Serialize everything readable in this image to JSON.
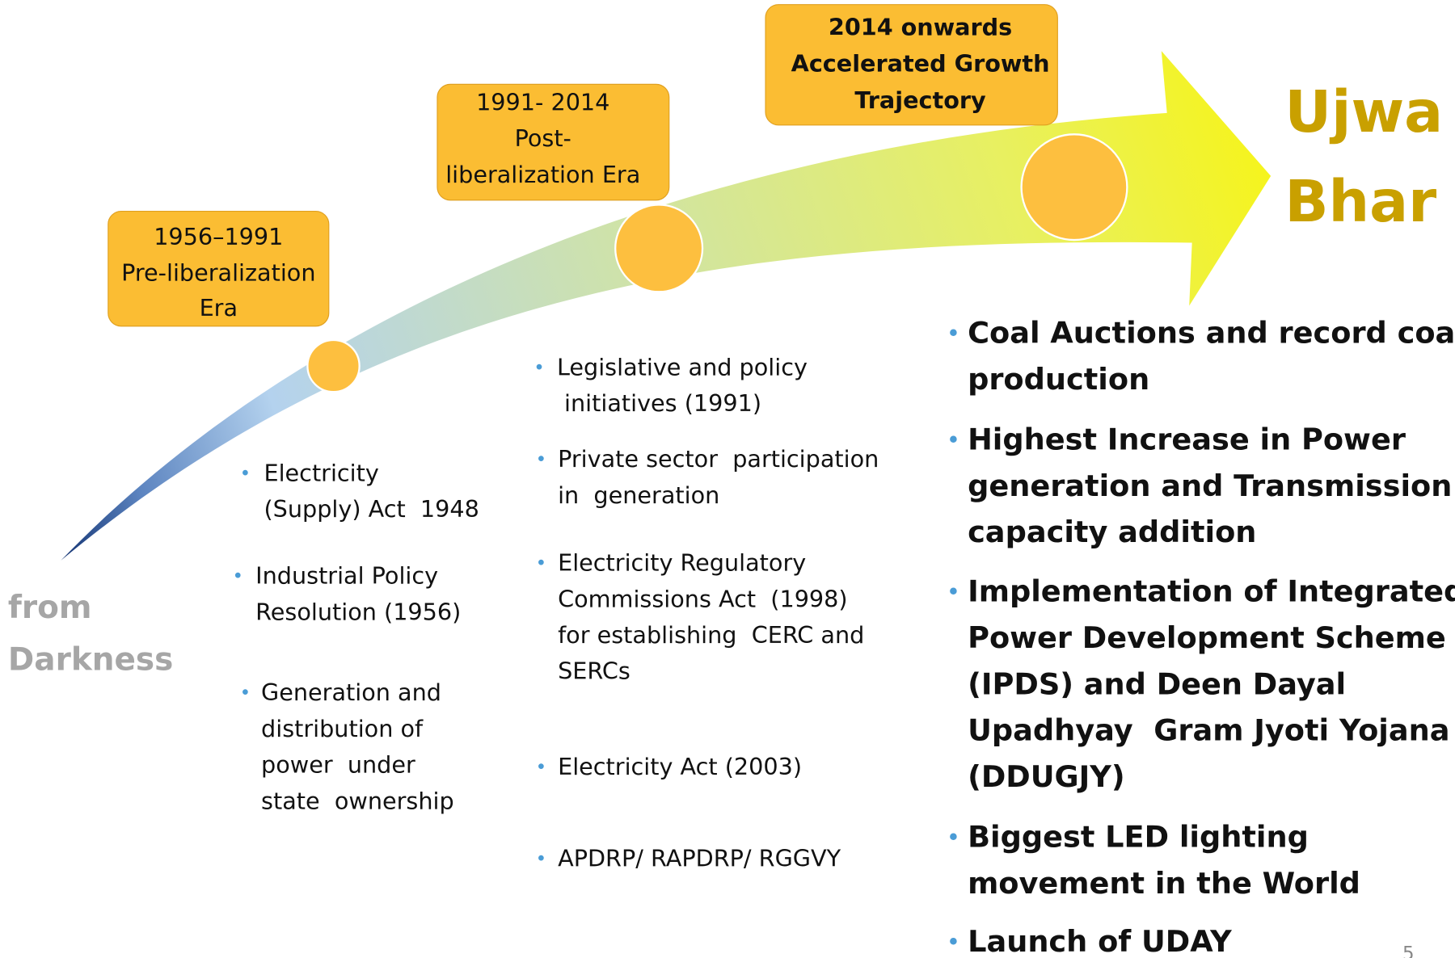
{
  "title": [
    "Ujwa",
    "Bhar"
  ],
  "origin": [
    "from",
    "Darkness"
  ],
  "page_number": "5",
  "eras": [
    {
      "label": [
        "1956–1991",
        "Pre-liberalization",
        "Era"
      ],
      "bullets": [
        [
          "Electricity",
          "(Supply) Act  1948"
        ],
        [
          "Industrial Policy",
          "Resolution (1956)"
        ],
        [
          "Generation and",
          "distribution of",
          "power  under",
          "state  ownership"
        ]
      ]
    },
    {
      "label": [
        "1991- 2014",
        "Post-",
        "liberalization Era"
      ],
      "bullets": [
        [
          "Legislative and policy",
          " initiatives (1991)"
        ],
        [
          "Private sector  participation",
          "in  generation"
        ],
        [
          "Electricity Regulatory",
          "Commissions Act  (1998)",
          "for establishing  CERC and",
          "SERCs"
        ],
        [
          "Electricity Act (2003)"
        ],
        [
          "APDRP/ RAPDRP/ RGGVY"
        ]
      ]
    },
    {
      "label": [
        "2014 onwards",
        "Accelerated Growth",
        "Trajectory"
      ],
      "bullets": [
        [
          "Coal Auctions and record coal",
          "production"
        ],
        [
          "Highest Increase in Power",
          "generation and Transmission",
          "capacity addition"
        ],
        [
          "Implementation of Integrated",
          "Power Development Scheme",
          "(IPDS) and Deen Dayal",
          "Upadhyay  Gram Jyoti Yojana",
          "(DDUGJY)"
        ],
        [
          "Biggest LED lighting",
          "movement in the World"
        ],
        [
          "Launch of UDAY"
        ]
      ]
    }
  ]
}
